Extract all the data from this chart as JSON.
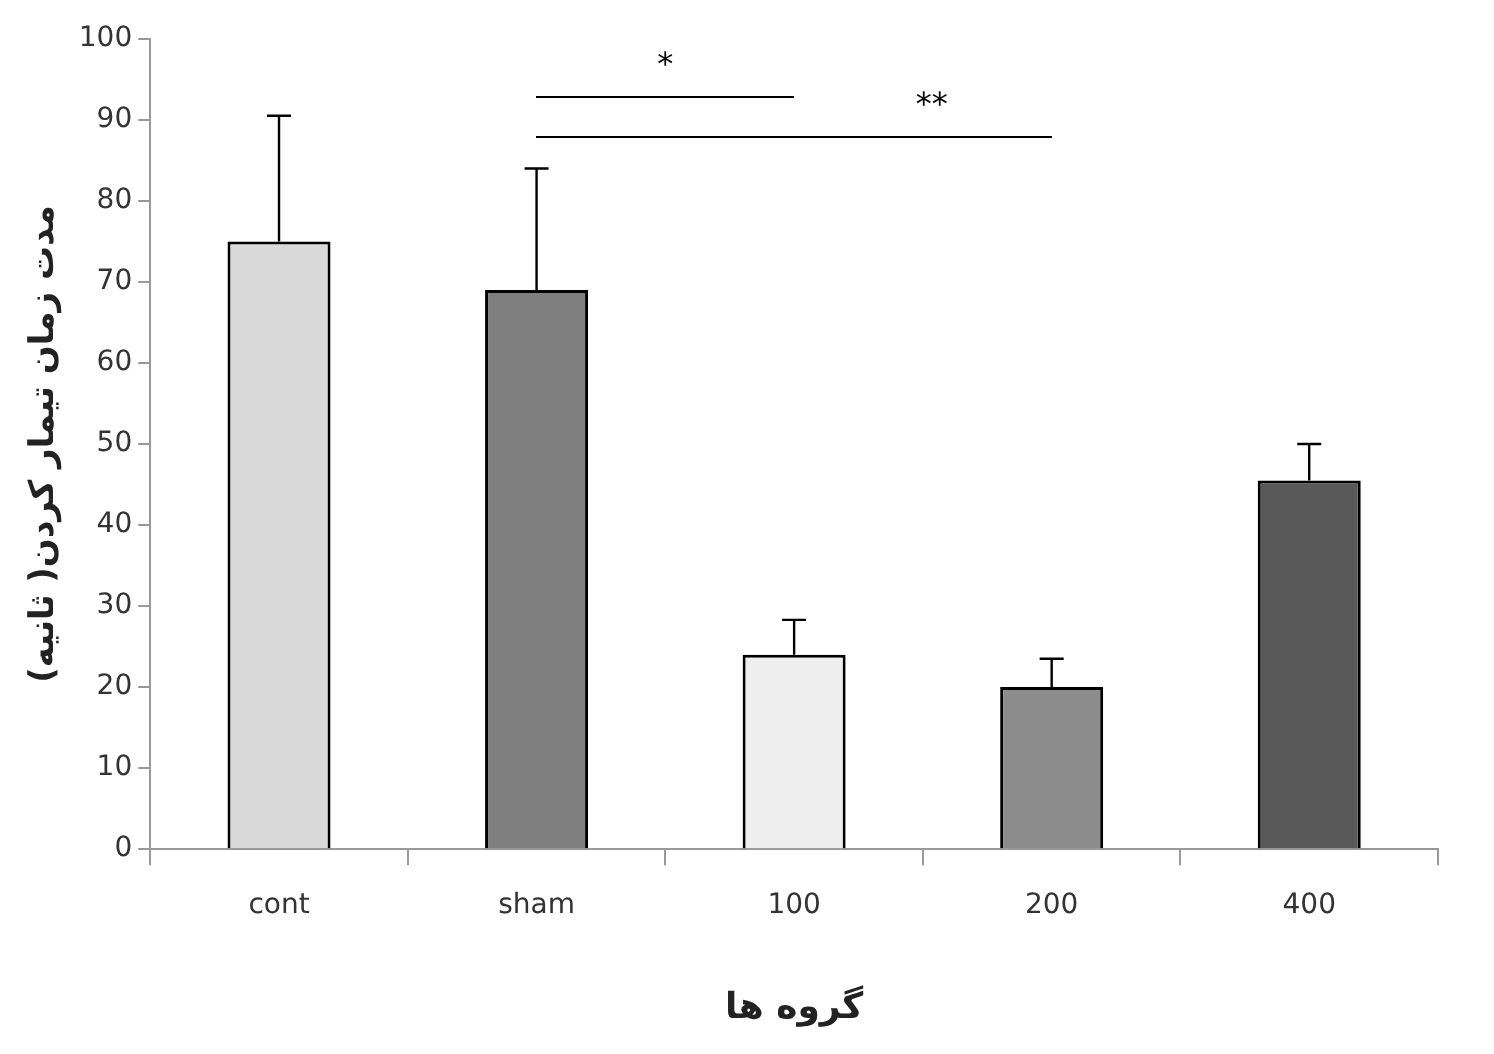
{
  "chart_data": {
    "type": "bar",
    "xlabel": "گروه ها",
    "ylabel": "مدت زمان تیمار کردن( ثانیه)",
    "categories": [
      "cont",
      "sham",
      "100",
      "200",
      "400"
    ],
    "values": [
      75,
      69,
      24,
      20,
      45.5
    ],
    "colors": [
      "#d9d9d9",
      "#7f7f7f",
      "#eeeeee",
      "#8c8c8c",
      "#595959"
    ],
    "errors": [
      [
        75,
        90.5
      ],
      [
        69,
        84
      ],
      [
        24,
        28.3
      ],
      [
        20,
        23.5
      ],
      [
        45.5,
        50
      ]
    ],
    "ylim": [
      0,
      100
    ],
    "yticks": [
      0,
      10,
      20,
      30,
      40,
      50,
      60,
      70,
      80,
      90,
      100
    ],
    "annotations": [
      "*",
      "**"
    ],
    "grid": false,
    "legend": false
  }
}
